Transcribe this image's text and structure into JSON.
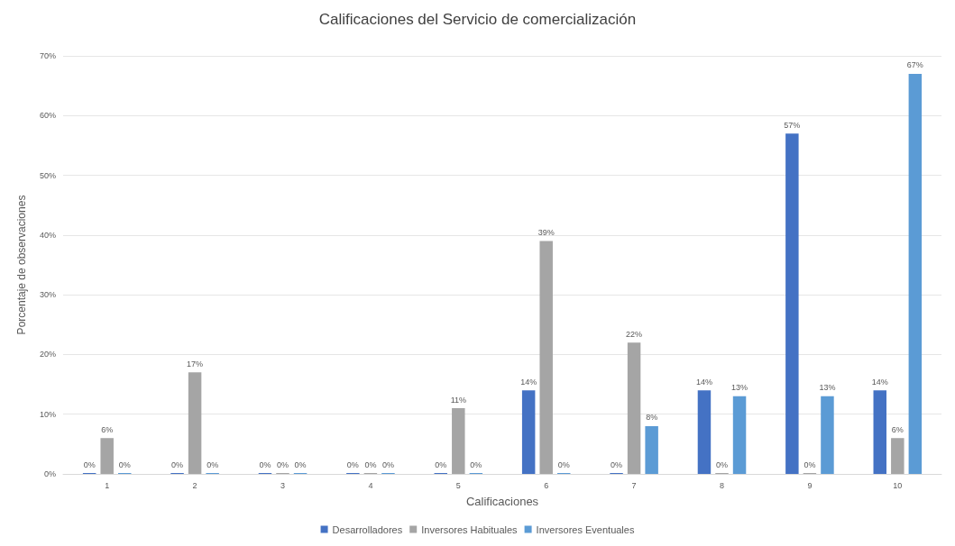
{
  "chart_data": {
    "type": "bar",
    "title": "Calificaciones del Servicio de comercialización",
    "xlabel": "Calificaciones",
    "ylabel": "Porcentaje de observaciones",
    "categories": [
      "1",
      "2",
      "3",
      "4",
      "5",
      "6",
      "7",
      "8",
      "9",
      "10"
    ],
    "series": [
      {
        "name": "Desarrolladores",
        "color": "#4472c4",
        "values": [
          0,
          0,
          0,
          0,
          0,
          14,
          0,
          14,
          57,
          14
        ],
        "value_labels": [
          "0%",
          "0%",
          "0%",
          "0%",
          "0%",
          "14%",
          "0%",
          "14%",
          "57%",
          "14%"
        ]
      },
      {
        "name": "Inversores Habituales",
        "color": "#a5a5a5",
        "values": [
          6,
          17,
          0,
          0,
          11,
          39,
          22,
          0,
          0,
          6
        ],
        "value_labels": [
          "6%",
          "17%",
          "0%",
          "0%",
          "11%",
          "39%",
          "22%",
          "0%",
          "0%",
          "6%"
        ]
      },
      {
        "name": "Inversores Eventuales",
        "color": "#5b9bd5",
        "values": [
          0,
          0,
          0,
          0,
          0,
          0,
          8,
          13,
          13,
          67
        ],
        "value_labels": [
          "0%",
          "0%",
          "0%",
          "0%",
          "0%",
          "0%",
          "8%",
          "13%",
          "13%",
          "67%"
        ]
      }
    ],
    "ylim": [
      0,
      70
    ],
    "yticks": [
      {
        "value": 0,
        "label": "0%"
      },
      {
        "value": 10,
        "label": "10%"
      },
      {
        "value": 20,
        "label": "20%"
      },
      {
        "value": 30,
        "label": "30%"
      },
      {
        "value": 40,
        "label": "40%"
      },
      {
        "value": 50,
        "label": "50%"
      },
      {
        "value": 60,
        "label": "60%"
      },
      {
        "value": 70,
        "label": "70%"
      }
    ],
    "grid": "y",
    "legend": "bottom"
  }
}
